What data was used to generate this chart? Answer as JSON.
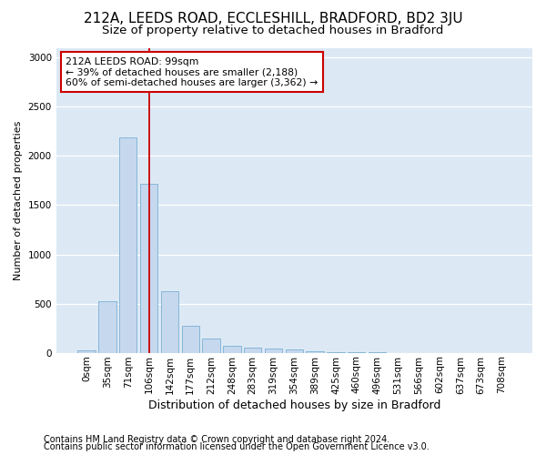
{
  "title1": "212A, LEEDS ROAD, ECCLESHILL, BRADFORD, BD2 3JU",
  "title2": "Size of property relative to detached houses in Bradford",
  "xlabel": "Distribution of detached houses by size in Bradford",
  "ylabel": "Number of detached properties",
  "footnote1": "Contains HM Land Registry data © Crown copyright and database right 2024.",
  "footnote2": "Contains public sector information licensed under the Open Government Licence v3.0.",
  "bar_labels": [
    "0sqm",
    "35sqm",
    "71sqm",
    "106sqm",
    "142sqm",
    "177sqm",
    "212sqm",
    "248sqm",
    "283sqm",
    "319sqm",
    "354sqm",
    "389sqm",
    "425sqm",
    "460sqm",
    "496sqm",
    "531sqm",
    "566sqm",
    "602sqm",
    "637sqm",
    "673sqm",
    "708sqm"
  ],
  "bar_values": [
    25,
    520,
    2190,
    1720,
    630,
    270,
    145,
    75,
    55,
    40,
    30,
    15,
    10,
    5,
    2,
    1,
    0,
    0,
    0,
    0,
    0
  ],
  "bar_color": "#c5d8ee",
  "bar_edge_color": "#7aafd4",
  "ylim": [
    0,
    3100
  ],
  "yticks": [
    0,
    500,
    1000,
    1500,
    2000,
    2500,
    3000
  ],
  "vline_x": 3.0,
  "annotation_line1": "212A LEEDS ROAD: 99sqm",
  "annotation_line2": "← 39% of detached houses are smaller (2,188)",
  "annotation_line3": "60% of semi-detached houses are larger (3,362) →",
  "annotation_box_color": "#ffffff",
  "annotation_box_edge": "#cc0000",
  "vline_color": "#cc0000",
  "bg_color": "#ffffff",
  "plot_bg_color": "#dce9f5",
  "grid_color": "#ffffff",
  "title1_fontsize": 11,
  "title2_fontsize": 9.5,
  "xlabel_fontsize": 9,
  "ylabel_fontsize": 8,
  "tick_fontsize": 7.5,
  "footnote_fontsize": 7
}
